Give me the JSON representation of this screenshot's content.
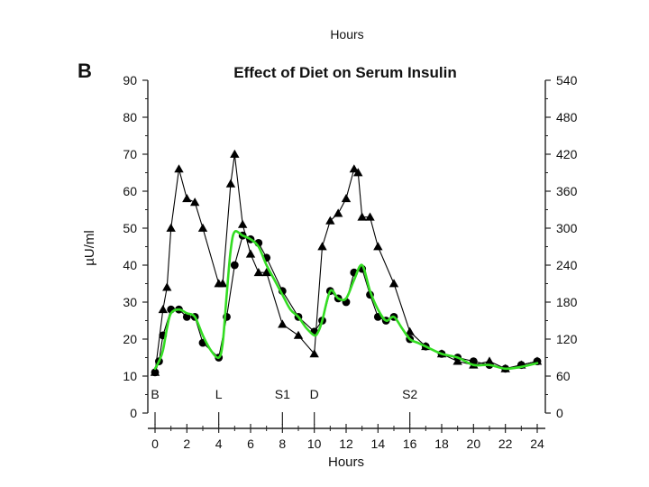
{
  "top_cut_label": "Hours",
  "panel_letter": "B",
  "chart_data": {
    "type": "line",
    "title": "Effect of Diet on Serum Insulin",
    "xlabel": "Hours",
    "ylabel": "µU/ml",
    "xlim": [
      0,
      24
    ],
    "ylim": [
      0,
      90
    ],
    "y2lim": [
      0,
      540
    ],
    "xticks": [
      0,
      2,
      4,
      6,
      8,
      10,
      12,
      14,
      16,
      18,
      20,
      22,
      24
    ],
    "yticks": [
      0,
      10,
      20,
      30,
      40,
      50,
      60,
      70,
      80,
      90
    ],
    "y2ticks": [
      0,
      60,
      120,
      180,
      240,
      300,
      360,
      420,
      480,
      540
    ],
    "meal_markers": [
      {
        "label": "B",
        "x": 0
      },
      {
        "label": "L",
        "x": 4
      },
      {
        "label": "S1",
        "x": 8
      },
      {
        "label": "D",
        "x": 10
      },
      {
        "label": "S2",
        "x": 16
      }
    ],
    "series": [
      {
        "marker": "triangle",
        "color": "#000000",
        "x": [
          0,
          0.5,
          0.75,
          1,
          1.5,
          2,
          2.5,
          3,
          4,
          4.25,
          4.75,
          5,
          5.5,
          6,
          6.5,
          7,
          8,
          9,
          10,
          10.5,
          11,
          11.5,
          12,
          12.5,
          12.75,
          13,
          13.5,
          14,
          15,
          16,
          17,
          18,
          19,
          20,
          21,
          22,
          23,
          24
        ],
        "y": [
          11,
          28,
          34,
          50,
          66,
          58,
          57,
          50,
          35,
          35,
          62,
          70,
          51,
          43,
          38,
          38,
          24,
          21,
          16,
          45,
          52,
          54,
          58,
          66,
          65,
          53,
          53,
          45,
          35,
          22,
          18,
          16,
          14,
          13,
          14,
          12,
          13,
          14
        ]
      },
      {
        "marker": "circle",
        "color": "#000000",
        "x": [
          0,
          0.25,
          0.5,
          1,
          1.5,
          2,
          2.5,
          3,
          4,
          4.5,
          5,
          5.5,
          6,
          6.5,
          7,
          8,
          9,
          10,
          10.5,
          11,
          11.5,
          12,
          12.5,
          13,
          13.5,
          14,
          14.5,
          15,
          16,
          17,
          18,
          19,
          20,
          21,
          22,
          23,
          24
        ],
        "y": [
          11,
          14,
          21,
          28,
          28,
          26,
          26,
          19,
          15,
          26,
          40,
          48,
          47,
          46,
          42,
          33,
          26,
          22,
          25,
          33,
          31,
          30,
          38,
          39,
          32,
          26,
          25,
          26,
          20,
          18,
          16,
          15,
          14,
          13,
          12,
          13,
          14
        ]
      },
      {
        "marker": "none",
        "color": "#33dd22",
        "x": [
          0,
          0.25,
          0.5,
          0.75,
          1,
          1.5,
          2,
          2.5,
          3,
          3.5,
          4,
          4.25,
          4.5,
          4.75,
          5,
          5.5,
          6,
          6.5,
          7,
          7.5,
          8,
          8.5,
          9,
          9.5,
          10,
          10.25,
          10.5,
          11,
          11.5,
          12,
          12.5,
          13,
          13.5,
          14,
          14.5,
          15,
          15.5,
          16,
          16.5,
          17,
          18,
          19,
          20,
          21,
          22,
          23,
          24
        ],
        "y": [
          12,
          14,
          17,
          23,
          27,
          28,
          27,
          26,
          21,
          17,
          15,
          19,
          32,
          44,
          49,
          48,
          47,
          45,
          40,
          36,
          32,
          28,
          26,
          23,
          21,
          22,
          25,
          33,
          31,
          31,
          36,
          40,
          33,
          28,
          25,
          26,
          23,
          20,
          19,
          18,
          16,
          15,
          13,
          13,
          12,
          12.5,
          13.5
        ]
      }
    ]
  }
}
